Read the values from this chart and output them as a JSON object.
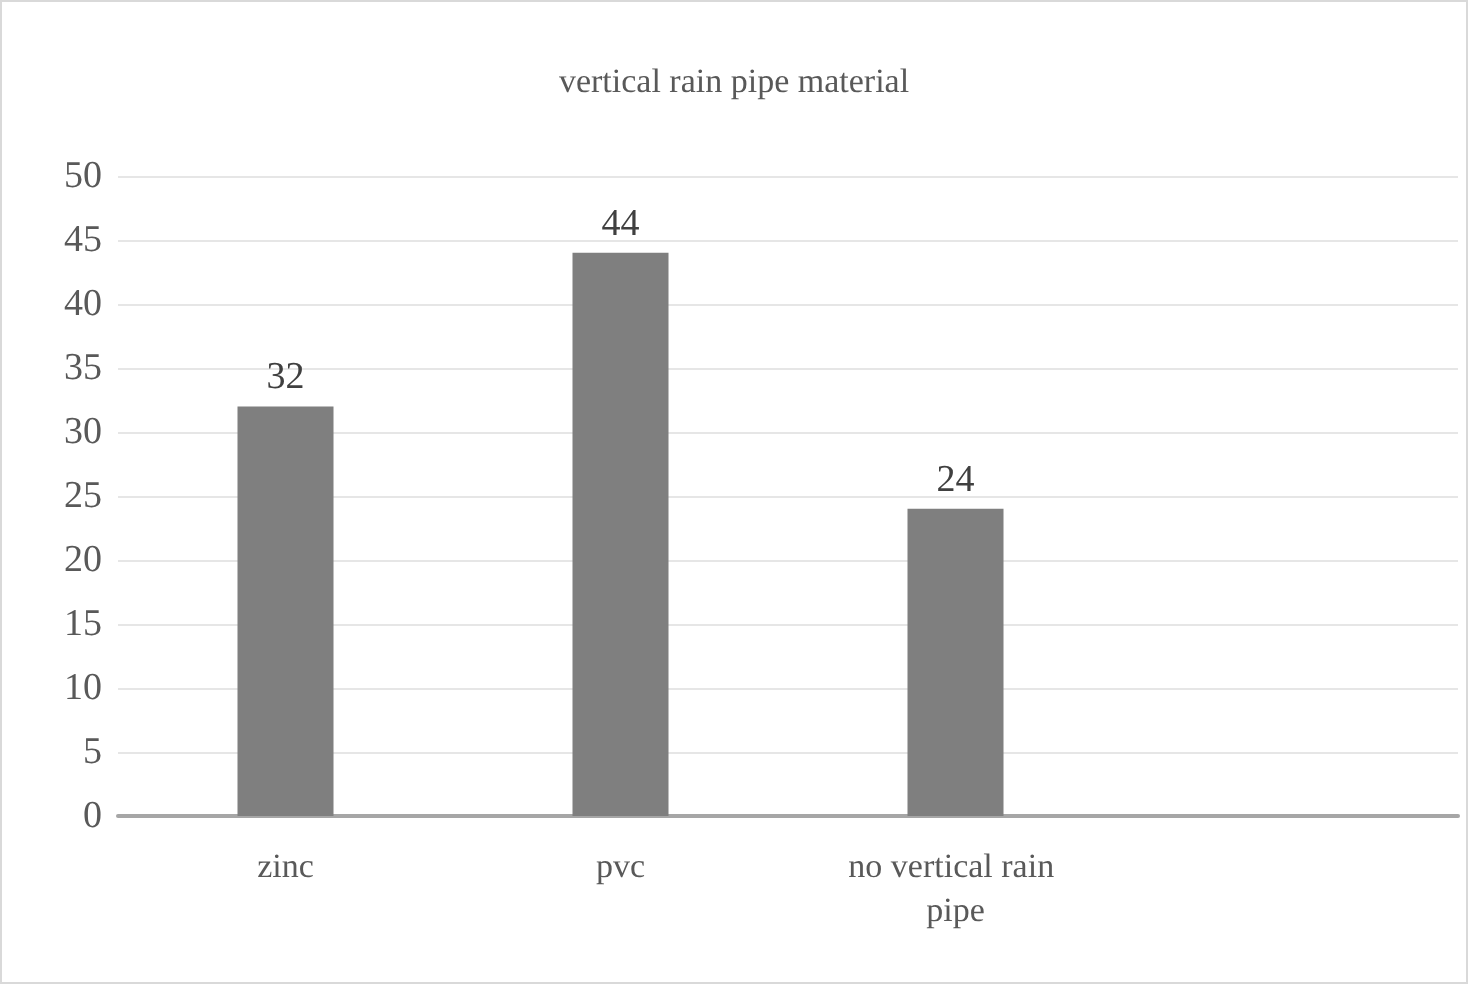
{
  "chart_data": {
    "type": "bar",
    "title": "vertical rain pipe material",
    "categories": [
      "zinc",
      "pvc",
      "no vertical rain pipe",
      null
    ],
    "values": [
      32,
      44,
      24,
      null
    ],
    "color": "#7f7f7f",
    "ylim": [
      0,
      50
    ],
    "yticks": [
      0,
      5,
      10,
      15,
      20,
      25,
      30,
      35,
      40,
      45,
      50
    ],
    "grid": "y",
    "data_labels": true
  }
}
